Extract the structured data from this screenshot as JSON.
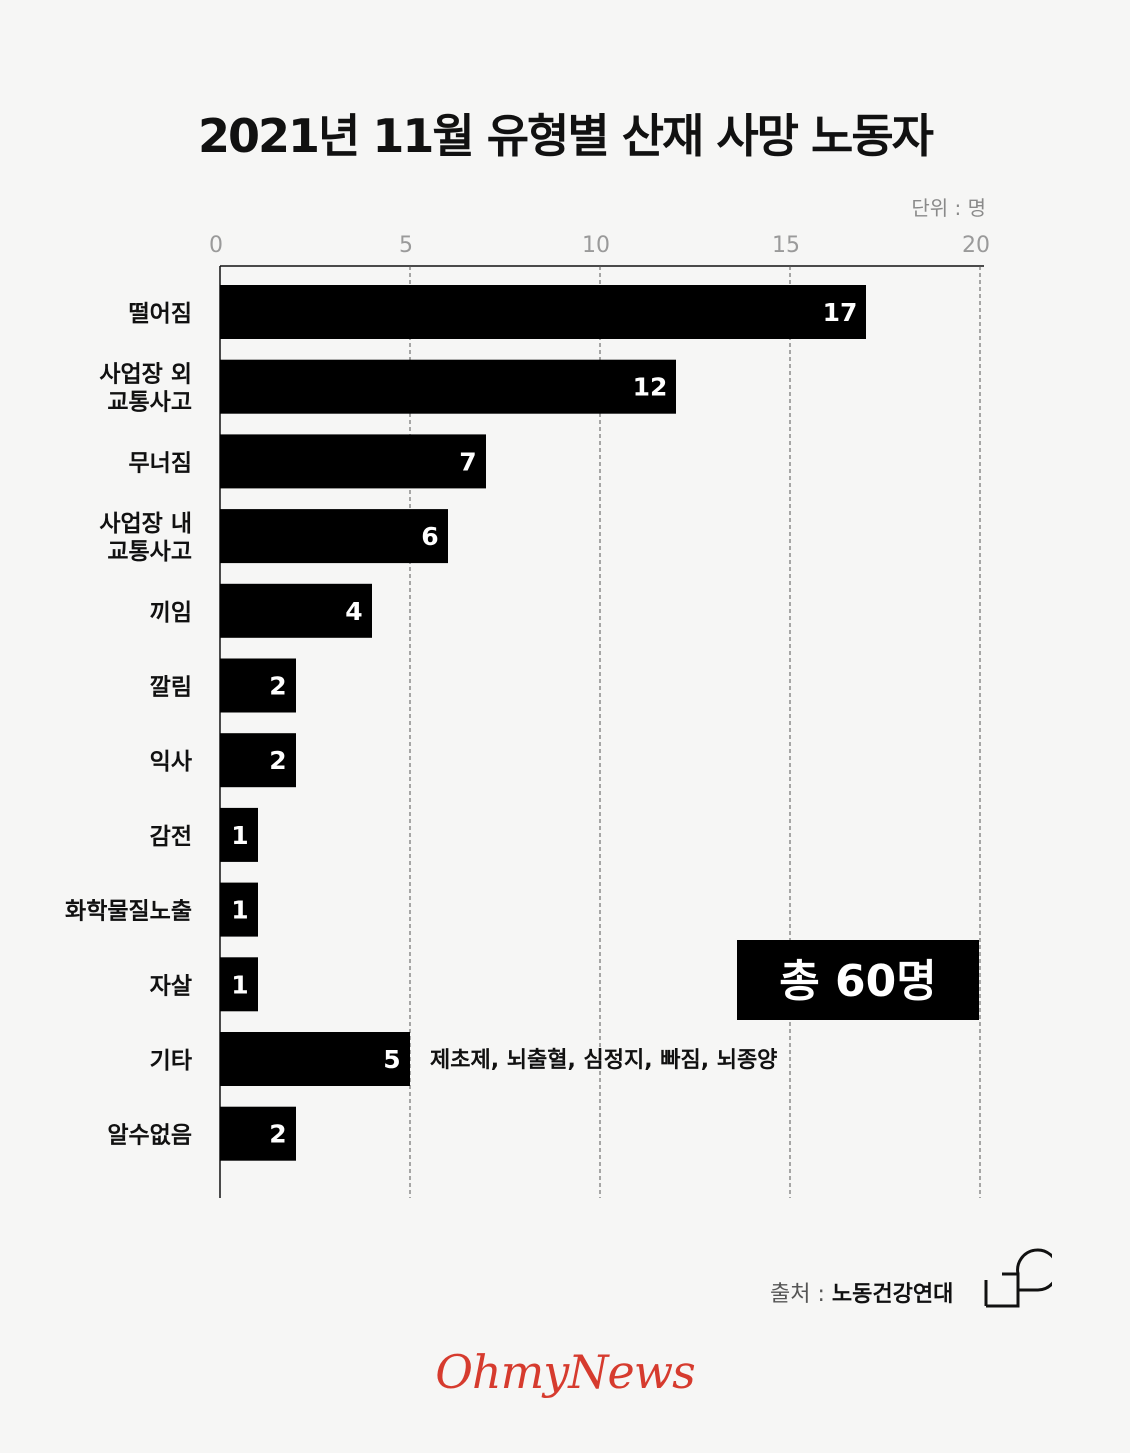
{
  "chart_data": {
    "type": "bar",
    "orientation": "horizontal",
    "title": "2021년 11월 유형별 산재 사망 노동자",
    "unit_label": "단위 : 명",
    "xlim": [
      0,
      20
    ],
    "xticks": [
      0,
      5,
      10,
      15,
      20
    ],
    "grid": "vertical dashed",
    "categories": [
      [
        "떨어짐"
      ],
      [
        "사업장 외",
        "교통사고"
      ],
      [
        "무너짐"
      ],
      [
        "사업장 내",
        "교통사고"
      ],
      [
        "끼임"
      ],
      [
        "깔림"
      ],
      [
        "익사"
      ],
      [
        "감전"
      ],
      [
        "화학물질노출"
      ],
      [
        "자살"
      ],
      [
        "기타"
      ],
      [
        "알수없음"
      ]
    ],
    "values": [
      17,
      12,
      7,
      6,
      4,
      2,
      2,
      1,
      1,
      1,
      5,
      2
    ],
    "annotations": [
      {
        "category_index": 10,
        "text": "제초제, 뇌출혈, 심정지, 빠짐, 뇌종양"
      }
    ],
    "total_label": "총 60명",
    "bar_color": "#000000",
    "value_label_color": "#ffffff"
  },
  "source": {
    "label": "출처 :",
    "name": "노동건강연대"
  },
  "brand": "OhmyNews",
  "colors": {
    "background": "#f6f6f5",
    "bar": "#000000",
    "brand": "#d63b2e",
    "axis_text": "#9a9a9a"
  }
}
